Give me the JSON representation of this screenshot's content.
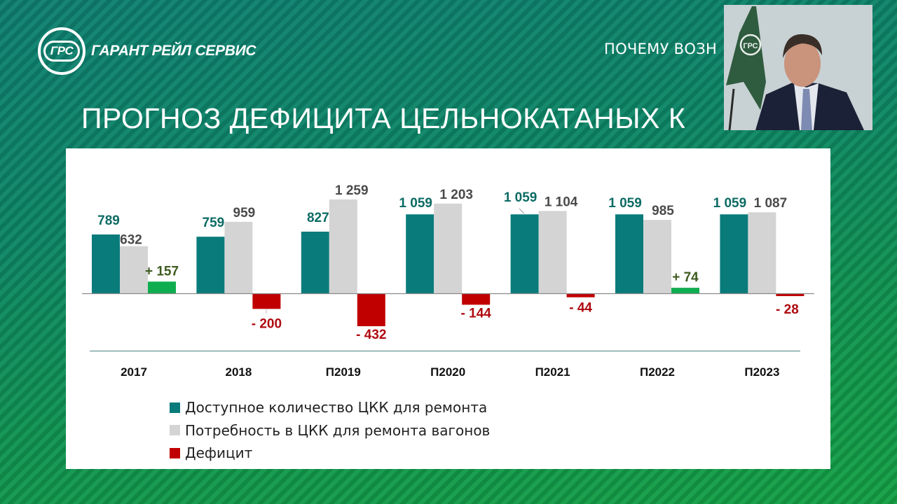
{
  "header": {
    "logo_mark": "ГРС",
    "company_name": "ГАРАНТ РЕЙЛ СЕРВИС",
    "section_title": "ПОЧЕМУ ВОЗН",
    "slide_title": "ПРОГНОЗ ДЕФИЦИТА ЦЕЛЬНОКАТАНЫХ К"
  },
  "colors": {
    "available": "#0a7b7b",
    "demand": "#d4d4d4",
    "deficit_negative": "#c00000",
    "deficit_positive": "#0fad4f",
    "label_available": "#0c6b64",
    "label_demand": "#4a4a4a",
    "label_positive": "#3d5a1f",
    "label_negative": "#b00a10"
  },
  "chart_data": {
    "type": "bar",
    "title": "ПРОГНОЗ ДЕФИЦИТА ЦЕЛЬНОКАТАНЫХ К",
    "categories": [
      "2017",
      "2018",
      "П2019",
      "П2020",
      "П2021",
      "П2022",
      "П2023"
    ],
    "series": [
      {
        "name": "Доступное количество ЦКК для ремонта",
        "values": [
          789,
          759,
          827,
          1059,
          1059,
          1059,
          1059
        ],
        "labels": [
          "789",
          "759",
          "827",
          "1 059",
          "1 059",
          "1 059",
          "1 059"
        ]
      },
      {
        "name": "Потребность в ЦКК для ремонта вагонов",
        "values": [
          632,
          959,
          1259,
          1203,
          1104,
          985,
          1087
        ],
        "labels": [
          "632",
          "959",
          "1 259",
          "1 203",
          "1 104",
          "985",
          "1 087"
        ]
      },
      {
        "name": "Дефицит",
        "values": [
          157,
          -200,
          -432,
          -144,
          -44,
          74,
          -28
        ],
        "labels": [
          "+ 157",
          "- 200",
          "- 432",
          "- 144",
          "- 44",
          "+ 74",
          "- 28"
        ]
      }
    ],
    "xlabel": "",
    "ylabel": "",
    "ylim": [
      -600,
      1400
    ],
    "grid": false,
    "legend_position": "bottom-left"
  },
  "legend": [
    {
      "label": "Доступное количество ЦКК для ремонта",
      "icon": "teal-square-icon"
    },
    {
      "label": "Потребность в ЦКК для ремонта вагонов",
      "icon": "grey-square-icon"
    },
    {
      "label": "Дефицит",
      "icon": "red-square-icon"
    }
  ],
  "webcam": {
    "flag_mark": "ГРС"
  }
}
